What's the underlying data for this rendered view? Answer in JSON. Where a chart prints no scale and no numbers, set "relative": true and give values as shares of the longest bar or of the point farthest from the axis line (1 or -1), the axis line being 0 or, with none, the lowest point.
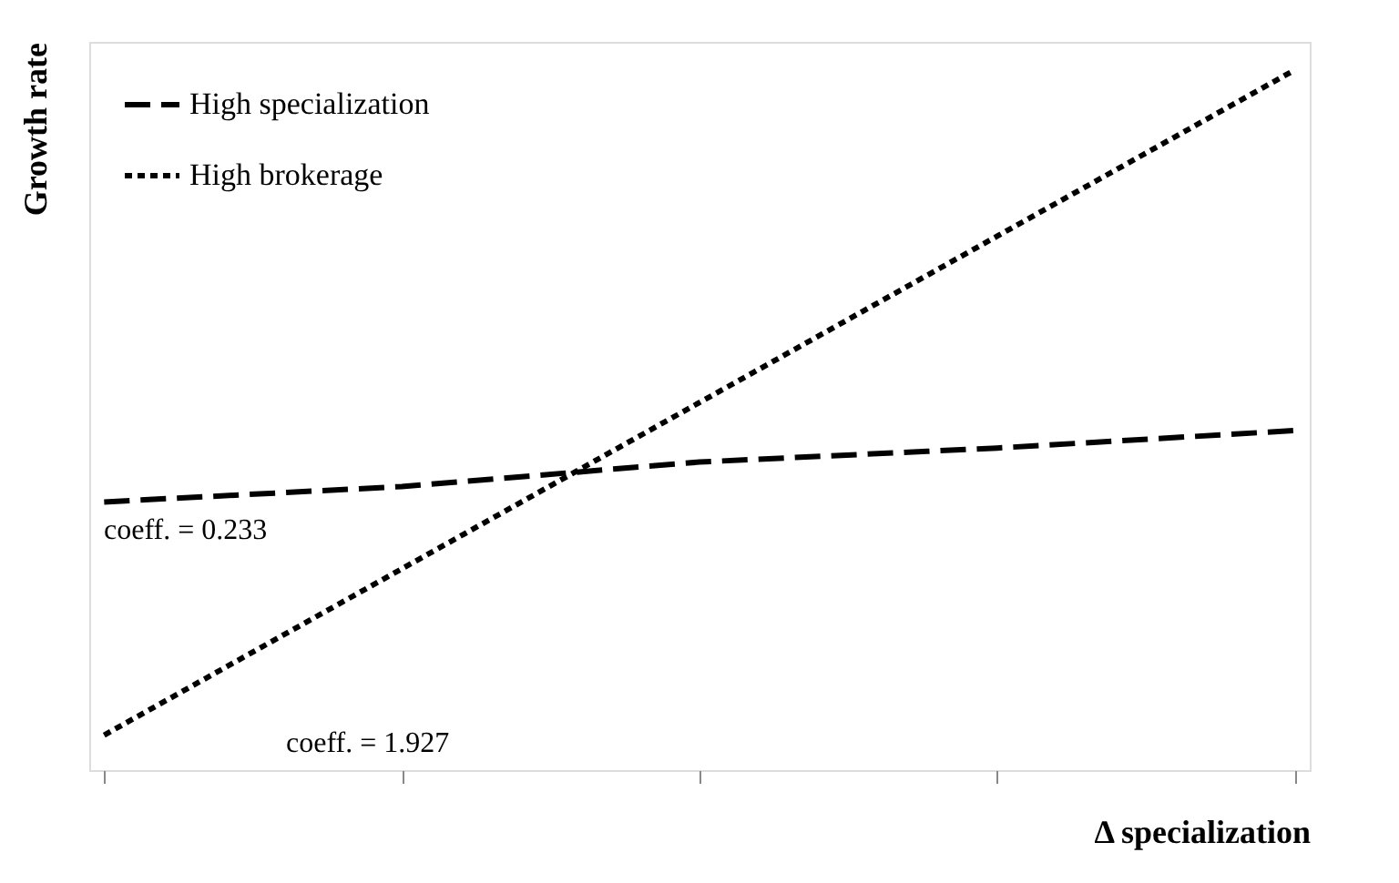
{
  "chart_data": {
    "type": "line",
    "relative": true,
    "xlabel": "Δ specialization",
    "ylabel": "Growth rate",
    "categories": [
      null,
      null,
      null,
      null,
      null
    ],
    "series": [
      {
        "name": "High specialization",
        "color": "#000000",
        "line_style": "dashed",
        "values": [
          0.383,
          0.405,
          0.44,
          0.46,
          0.485
        ]
      },
      {
        "name": "High brokerage",
        "color": "#000000",
        "line_style": "dotted",
        "values": [
          0.05,
          0.2875,
          0.525,
          0.7625,
          1.0
        ]
      }
    ],
    "annotations": [
      "coeff. = 0.233",
      "coeff. = 1.927"
    ],
    "legend": "top left",
    "grid": false,
    "marker": "none",
    "tick_labels": false
  }
}
